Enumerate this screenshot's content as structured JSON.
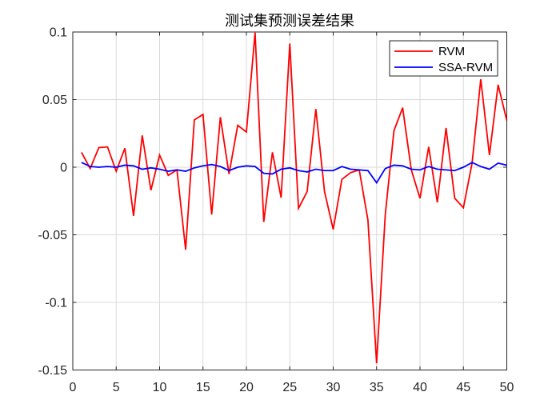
{
  "title": "测试集预测误差结果",
  "chart_data": {
    "type": "line",
    "title": "测试集预测误差结果",
    "x": [
      1,
      2,
      3,
      4,
      5,
      6,
      7,
      8,
      9,
      10,
      11,
      12,
      13,
      14,
      15,
      16,
      17,
      18,
      19,
      20,
      21,
      22,
      23,
      24,
      25,
      26,
      27,
      28,
      29,
      30,
      31,
      32,
      33,
      34,
      35,
      36,
      37,
      38,
      39,
      40,
      41,
      42,
      43,
      44,
      45,
      46,
      47,
      48,
      49,
      50
    ],
    "series": [
      {
        "name": "RVM",
        "color": "#ff0000",
        "values": [
          0.011,
          -0.001,
          0.0145,
          0.015,
          -0.003,
          0.014,
          -0.036,
          0.0235,
          -0.017,
          0.009,
          -0.006,
          -0.002,
          -0.061,
          0.035,
          0.039,
          -0.035,
          0.037,
          -0.005,
          0.031,
          0.026,
          0.0995,
          -0.0405,
          0.011,
          -0.0225,
          0.0915,
          -0.0305,
          -0.018,
          0.043,
          -0.018,
          -0.046,
          -0.009,
          -0.004,
          -0.002,
          -0.039,
          -0.145,
          -0.035,
          0.027,
          0.044,
          -0.002,
          -0.023,
          0.015,
          -0.026,
          0.029,
          -0.023,
          -0.03,
          0.003,
          0.065,
          0.009,
          0.061,
          0.0345
        ]
      },
      {
        "name": "SSA-RVM",
        "color": "#0000ff",
        "values": [
          0.0035,
          0.0005,
          0.0,
          0.0005,
          0.0,
          0.0015,
          0.001,
          -0.0015,
          -0.0005,
          -0.0015,
          -0.003,
          -0.002,
          -0.003,
          -0.0005,
          0.001,
          0.002,
          0.0005,
          -0.0025,
          0.0,
          0.001,
          0.0005,
          -0.0045,
          -0.005,
          -0.0015,
          -0.0005,
          -0.0025,
          -0.0035,
          -0.0015,
          -0.0025,
          -0.0025,
          0.0005,
          -0.0015,
          -0.002,
          -0.0025,
          -0.0115,
          -0.001,
          0.0015,
          0.001,
          -0.0015,
          -0.002,
          0.0005,
          -0.0015,
          -0.002,
          -0.0025,
          0.0,
          0.0035,
          0.0005,
          -0.0015,
          0.003,
          0.0015
        ]
      }
    ],
    "xlim": [
      0,
      50
    ],
    "ylim": [
      -0.15,
      0.1
    ],
    "xticks": [
      0,
      5,
      10,
      15,
      20,
      25,
      30,
      35,
      40,
      45,
      50
    ],
    "xtick_labels": [
      "0",
      "5",
      "10",
      "15",
      "20",
      "25",
      "30",
      "35",
      "40",
      "45",
      "50"
    ],
    "yticks": [
      0.1,
      0.05,
      0,
      -0.05,
      -0.1,
      -0.15
    ],
    "ytick_labels": [
      "0.1",
      "0.05",
      "0",
      "-0.05",
      "-0.1",
      "-0.15"
    ],
    "grid": true,
    "legend_position": "top-right",
    "axis_color": "#262626",
    "grid_color": "#d9d9d9",
    "background": "#ffffff"
  }
}
